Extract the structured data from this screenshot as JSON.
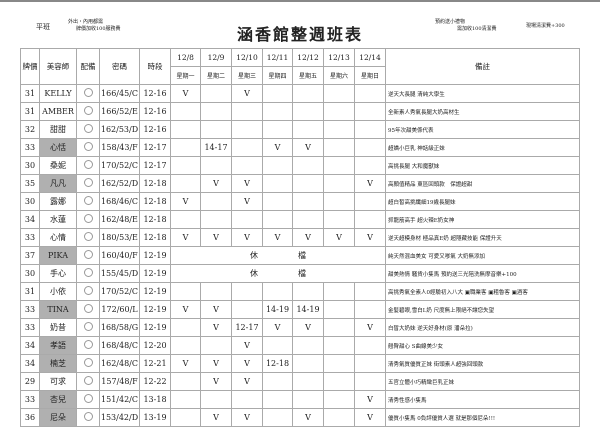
{
  "header": {
    "left": "平班",
    "note_left_1": "外出・內用都需",
    "note_left_2": "牌價加收100服務費",
    "title": "涵香館整週班表",
    "note_right_1": "預約送小禮物",
    "note_right_2": "需加收100清潔費",
    "note_far_right": "現場清潔費+300"
  },
  "columns": {
    "price": "牌價",
    "stylist": "美容師",
    "equip": "配備",
    "code": "密碼",
    "slot": "時段",
    "notes": "備註"
  },
  "days": [
    {
      "date": "12/8",
      "weekday": "星期一"
    },
    {
      "date": "12/9",
      "weekday": "星期二"
    },
    {
      "date": "12/10",
      "weekday": "星期三"
    },
    {
      "date": "12/11",
      "weekday": "星期四"
    },
    {
      "date": "12/12",
      "weekday": "星期五"
    },
    {
      "date": "12/13",
      "weekday": "星期六"
    },
    {
      "date": "12/14",
      "weekday": "星期日"
    }
  ],
  "off_label": "休　　　　　檔",
  "rows": [
    {
      "price": "31",
      "name": "KELLY",
      "grey": false,
      "code": "166/45/C",
      "slot": "12-16",
      "days": [
        "V",
        "",
        "V",
        "",
        "",
        "",
        ""
      ],
      "note": "逆天大長腿 清純大學生"
    },
    {
      "price": "31",
      "name": "AMBER",
      "grey": false,
      "code": "166/52/E",
      "slot": "12-16",
      "days": [
        "",
        "",
        "",
        "",
        "",
        "",
        ""
      ],
      "note": "全新素人秀氣長腿大奶高材生"
    },
    {
      "price": "32",
      "name": "甜甜",
      "grey": false,
      "code": "162/53/D",
      "slot": "12-16",
      "days": [
        "",
        "",
        "",
        "",
        "",
        "",
        ""
      ],
      "note": "95年次甜美係代表"
    },
    {
      "price": "33",
      "name": "心恬",
      "grey": true,
      "code": "158/43/F",
      "slot": "12-17",
      "days": [
        "",
        "14-17",
        "",
        "V",
        "V",
        "",
        ""
      ],
      "note": "超嬌小巨乳 神話級正妹"
    },
    {
      "price": "30",
      "name": "桑妮",
      "grey": false,
      "code": "170/52/C",
      "slot": "12-17",
      "days": [
        "",
        "",
        "",
        "",
        "",
        "",
        ""
      ],
      "note": "高挑長腿 大和魔獸妹"
    },
    {
      "price": "35",
      "name": "凡凡",
      "grey": true,
      "code": "162/52/D",
      "slot": "12-18",
      "days": [
        "",
        "V",
        "V",
        "",
        "",
        "",
        "V"
      ],
      "note": "高顏值精品 東區回頭款　保證超甜"
    },
    {
      "price": "30",
      "name": "露娜",
      "grey": false,
      "code": "168/46/C",
      "slot": "12-18",
      "days": [
        "V",
        "",
        "V",
        "",
        "",
        "",
        ""
      ],
      "note": "超白皙高挑纖細19歲長腿妹"
    },
    {
      "price": "34",
      "name": "水蓮",
      "grey": false,
      "code": "162/48/E",
      "slot": "12-18",
      "days": [
        "",
        "",
        "",
        "",
        "",
        "",
        ""
      ],
      "note": "抓龍筋高手 超火辣E奶女神"
    },
    {
      "price": "33",
      "name": "心情",
      "grey": false,
      "code": "180/53/E",
      "slot": "12-18",
      "days": [
        "V",
        "V",
        "V",
        "V",
        "V",
        "V",
        "V"
      ],
      "note": "逆天超模身材 極品真E奶 超隱藏技能 保證升天"
    },
    {
      "price": "37",
      "name": "PIKA",
      "grey": true,
      "code": "160/40/F",
      "slot": "12-19",
      "off": true,
      "days": [],
      "note": "純天然混血美女 可愛又嗲氣 大奶無添加"
    },
    {
      "price": "30",
      "name": "手心",
      "grey": false,
      "code": "155/45/D",
      "slot": "12-19",
      "off": true,
      "days": [],
      "note": "甜美熱情 騷貨小隻馬 預約送三光陪洗無摩音樂+100"
    },
    {
      "price": "31",
      "name": "小依",
      "grey": false,
      "code": "170/52/C",
      "slot": "12-19",
      "days": [
        "",
        "",
        "",
        "",
        "",
        "",
        ""
      ],
      "note": "高挑秀氣全素人0經驗初入八大 ▣職業客 ▣粗魯客 ▣酒客"
    },
    {
      "price": "33",
      "name": "TINA",
      "grey": true,
      "code": "172/60/L",
      "slot": "12-19",
      "days": [
        "V",
        "V",
        "",
        "14-19",
        "14-19",
        "",
        ""
      ],
      "note": "金髮碧眼,雪白L奶 尺度無上限絕不讓您失望"
    },
    {
      "price": "33",
      "name": "奶昔",
      "grey": false,
      "code": "168/58/G",
      "slot": "12-19",
      "days": [
        "",
        "V",
        "12-17",
        "V",
        "V",
        "",
        "V"
      ],
      "note": "白皙大奶妹 逆天好身材(原 潘朵拉)"
    },
    {
      "price": "34",
      "name": "孝語",
      "grey": true,
      "code": "168/48/C",
      "slot": "12-20",
      "days": [
        "",
        "",
        "V",
        "",
        "",
        "",
        ""
      ],
      "note": "翹臀甜心 S曲線美少女"
    },
    {
      "price": "34",
      "name": "楠芝",
      "grey": true,
      "code": "162/48/C",
      "slot": "12-21",
      "days": [
        "V",
        "V",
        "V",
        "12-18",
        "",
        "",
        ""
      ],
      "note": "清秀氣質優質正妹 街頭素人超強回頭款"
    },
    {
      "price": "29",
      "name": "可求",
      "grey": false,
      "code": "157/48/F",
      "slot": "12-22",
      "days": [
        "",
        "V",
        "V",
        "",
        "",
        "",
        ""
      ],
      "note": "五官立體小巧精緻巨乳正妹"
    },
    {
      "price": "33",
      "name": "杏兒",
      "grey": true,
      "code": "151/42/C",
      "slot": "13-18",
      "days": [
        "",
        "",
        "",
        "",
        "",
        "",
        "V"
      ],
      "note": "清秀性感小隻馬"
    },
    {
      "price": "36",
      "name": "尼朵",
      "grey": true,
      "code": "153/42/D",
      "slot": "13-19",
      "days": [
        "",
        "V",
        "V",
        "",
        "V",
        "",
        "V"
      ],
      "note": "優質小隻馬 0負評優質人選 就是那個尼朵!!!"
    }
  ]
}
